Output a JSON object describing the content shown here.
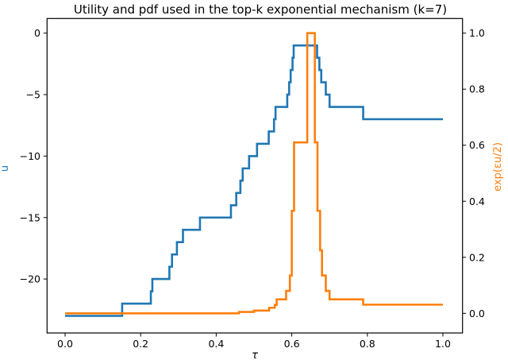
{
  "chart_data": {
    "type": "line",
    "title": "Utility and pdf used in the top-k exponential mechanism (k=7)",
    "xlabel": "τ",
    "ylabel_left": "u",
    "ylabel_right": "exp(εu/2)",
    "xlim": [
      -0.048,
      1.052
    ],
    "ylim_left": [
      -23.8,
      1.2
    ],
    "ylim_right": [
      -0.05,
      1.05
    ],
    "xticks": [
      0.0,
      0.2,
      0.4,
      0.6,
      0.8,
      1.0
    ],
    "xtick_labels": [
      "0.0",
      "0.2",
      "0.4",
      "0.6",
      "0.8",
      "1.0"
    ],
    "yticks_left": [
      0,
      -5,
      -10,
      -15,
      -20
    ],
    "ytick_labels_left": [
      "0",
      "−5",
      "−10",
      "−15",
      "−20"
    ],
    "yticks_right": [
      0.0,
      0.2,
      0.4,
      0.6,
      0.8,
      1.0
    ],
    "ytick_labels_right": [
      "0.0",
      "0.2",
      "0.4",
      "0.6",
      "0.8",
      "1.0"
    ],
    "grid": false,
    "legend": null,
    "series": [
      {
        "name": "u",
        "axis": "left",
        "color": "#1f77b4",
        "drawstyle": "steps-post",
        "x": [
          0.0,
          0.151,
          0.227,
          0.231,
          0.276,
          0.283,
          0.296,
          0.312,
          0.357,
          0.439,
          0.453,
          0.464,
          0.47,
          0.487,
          0.508,
          0.539,
          0.553,
          0.557,
          0.588,
          0.593,
          0.597,
          0.602,
          0.605,
          0.667,
          0.673,
          0.678,
          0.69,
          0.7,
          0.789,
          1.0
        ],
        "y": [
          -23,
          -22,
          -21,
          -20,
          -19,
          -18,
          -17,
          -16,
          -15,
          -14,
          -13,
          -12,
          -11,
          -10,
          -9,
          -8,
          -7,
          -6,
          -5,
          -4,
          -3,
          -2,
          -1,
          -2,
          -3,
          -4,
          -5,
          -6,
          -7,
          -7
        ]
      },
      {
        "name": "exp(εu/2)",
        "axis": "right",
        "color": "#ff7f0e",
        "drawstyle": "steps-post",
        "x": [
          0.0,
          0.46,
          0.5,
          0.54,
          0.555,
          0.56,
          0.585,
          0.595,
          0.6,
          0.606,
          0.641,
          0.661,
          0.668,
          0.675,
          0.68,
          0.69,
          0.7,
          0.789,
          1.0
        ],
        "y": [
          0.0,
          0.005,
          0.01,
          0.02,
          0.03,
          0.05,
          0.08,
          0.135,
          0.366,
          0.61,
          1.0,
          0.61,
          0.366,
          0.225,
          0.135,
          0.08,
          0.05,
          0.031,
          0.031
        ]
      }
    ]
  },
  "colors": {
    "left_axis": "#1f77b4",
    "right_axis": "#ff7f0e",
    "frame": "#000000"
  }
}
